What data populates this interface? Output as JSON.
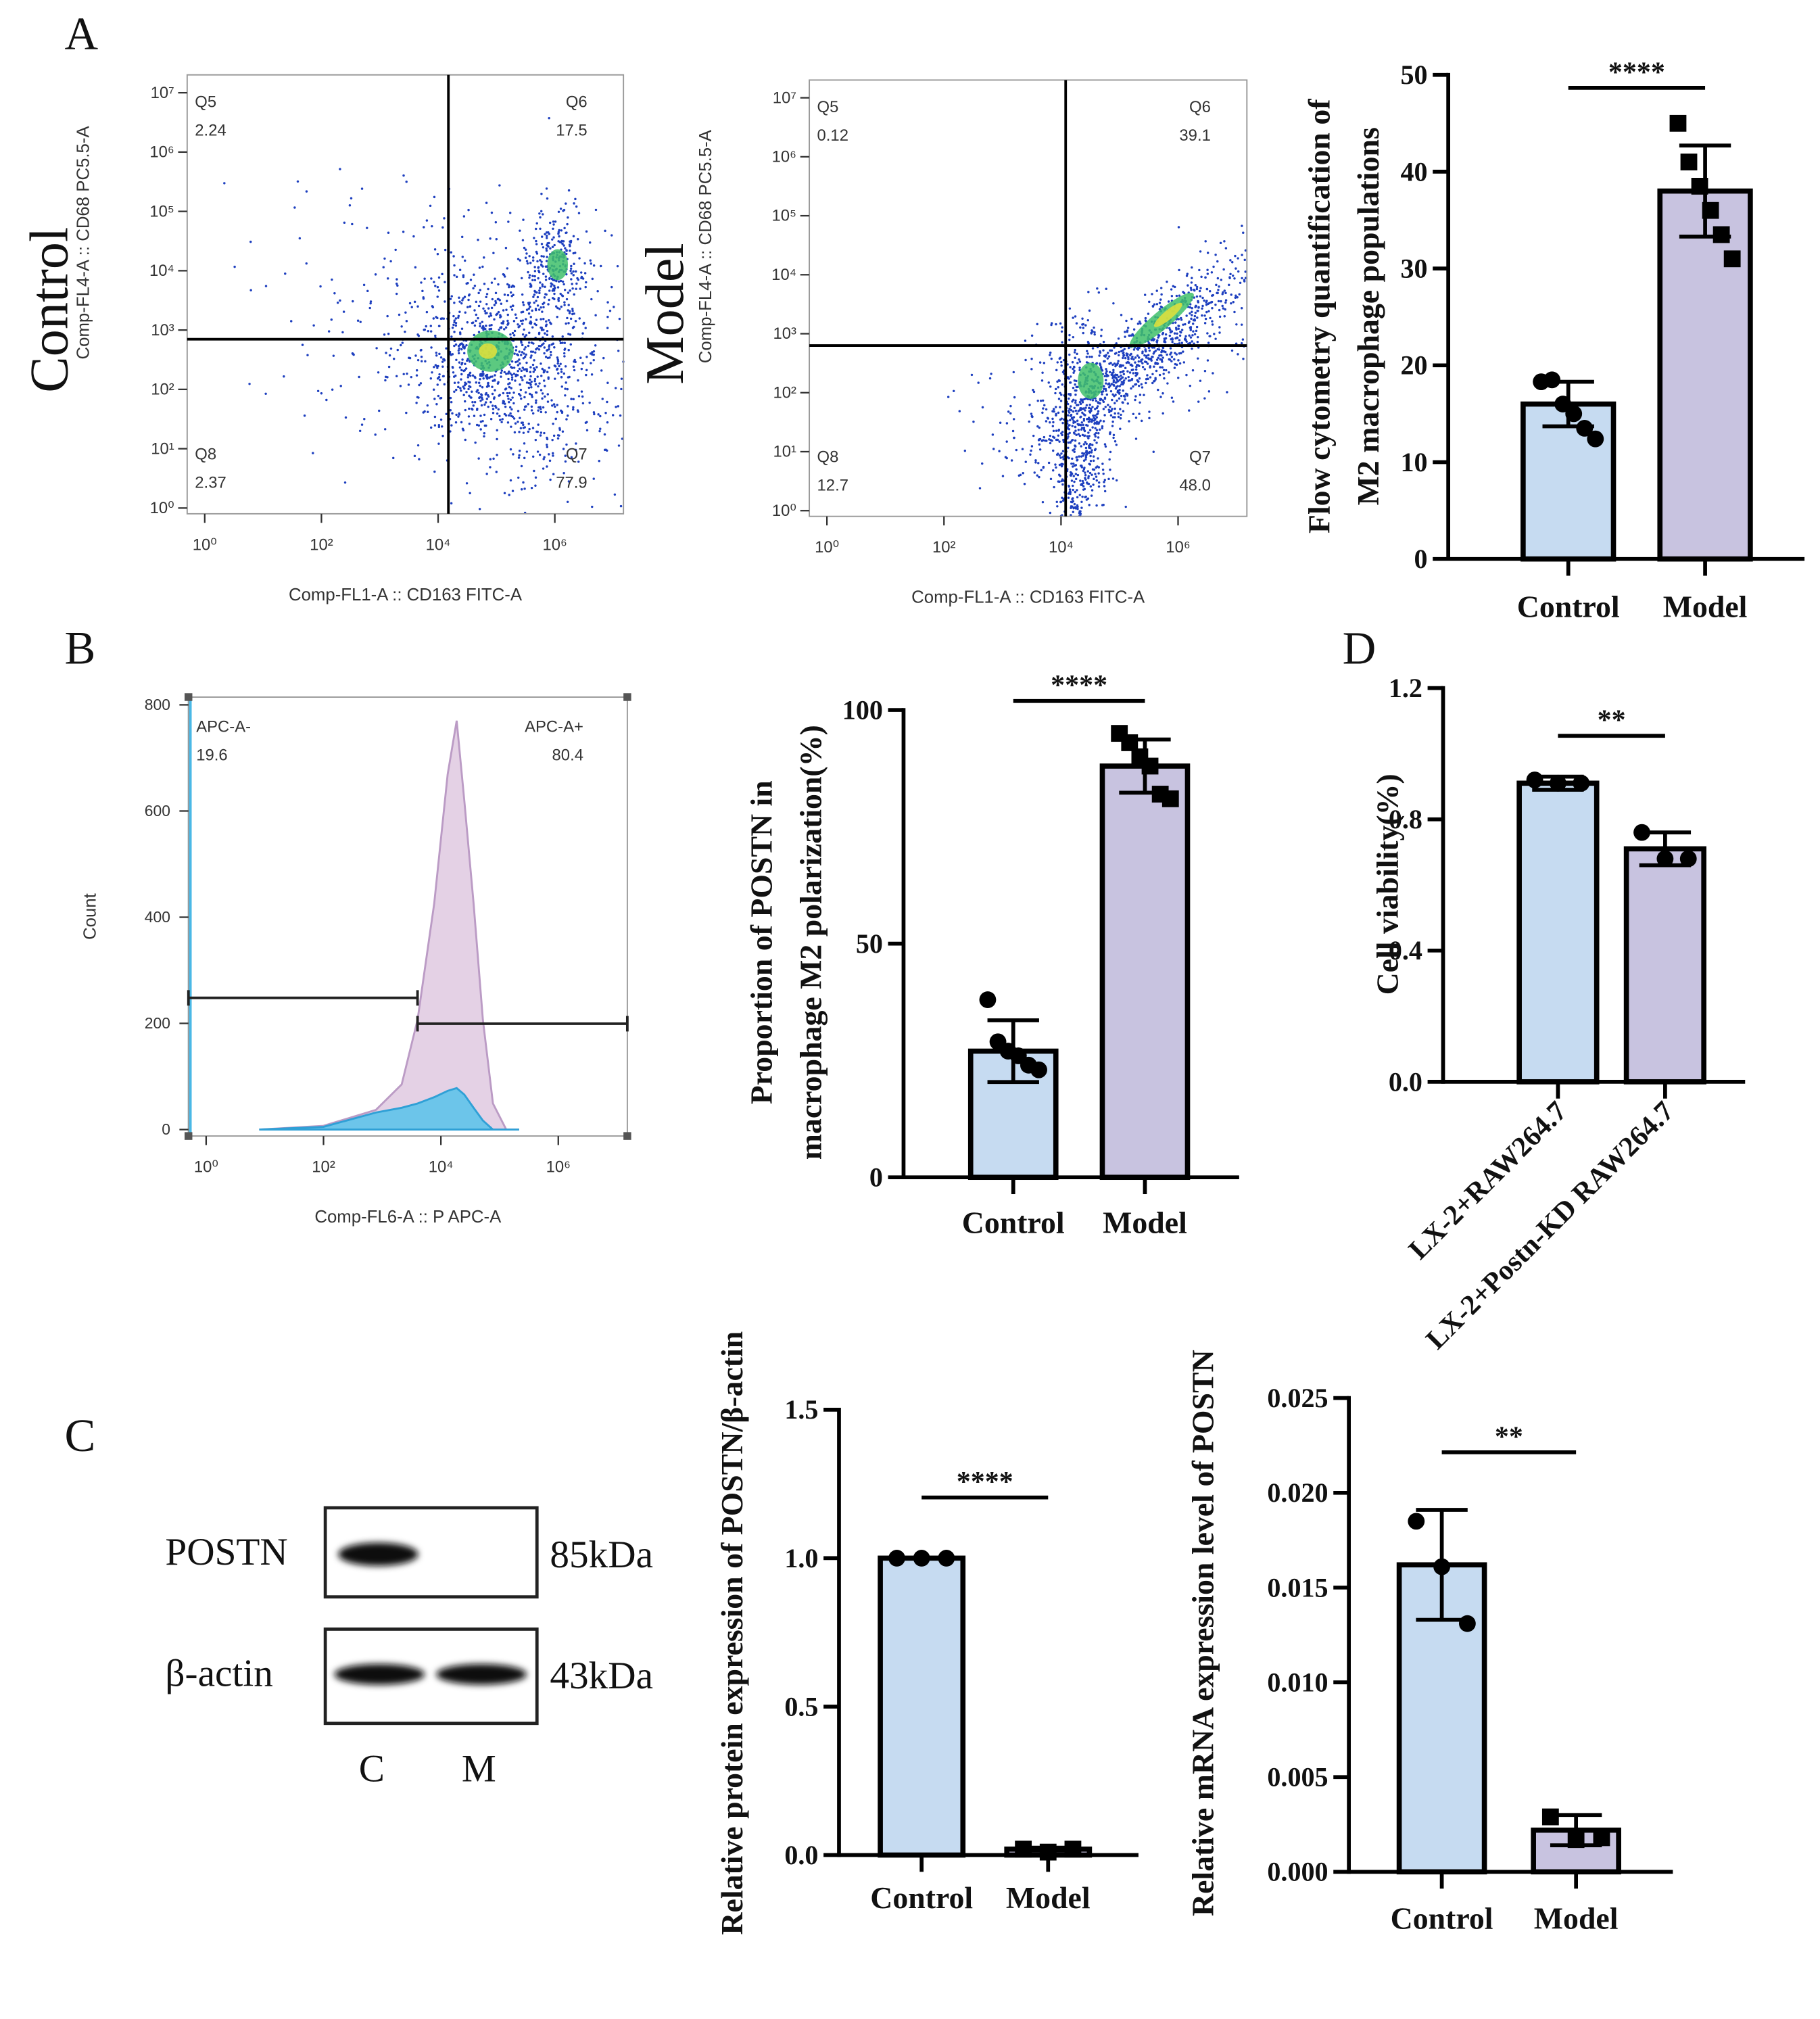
{
  "panel_labels": [
    "A",
    "B",
    "C",
    "D"
  ],
  "chart_data": [
    {
      "type": "density",
      "group": "Control",
      "xlabel": "Comp-FL1-A :: CD163 FITC-A",
      "ylabel": "Comp-FL4-A :: CD68 PC5.5-A",
      "log_scale": true,
      "xlim": [
        0.5,
        15000000
      ],
      "ylim": [
        0.8,
        20000000
      ],
      "xticks": [
        {
          "value": 1,
          "label": "10⁰"
        },
        {
          "value": 100,
          "label": "10²"
        },
        {
          "value": 10000,
          "label": "10⁴"
        },
        {
          "value": 1000000,
          "label": "10⁶"
        }
      ],
      "yticks": [
        {
          "value": 1,
          "label": "10⁰"
        },
        {
          "value": 10,
          "label": "10¹"
        },
        {
          "value": 100,
          "label": "10²"
        },
        {
          "value": 1000,
          "label": "10³"
        },
        {
          "value": 10000,
          "label": "10⁴"
        },
        {
          "value": 100000,
          "label": "10⁵"
        },
        {
          "value": 1000000,
          "label": "10⁶"
        },
        {
          "value": 10000000,
          "label": "10⁷"
        }
      ],
      "gates": {
        "x": 15000,
        "y": 700
      },
      "quadrants": [
        {
          "name": "Q5",
          "value": 2.24
        },
        {
          "name": "Q6",
          "value": 17.5
        },
        {
          "name": "Q8",
          "value": 2.37
        },
        {
          "name": "Q7",
          "value": 77.9
        }
      ]
    },
    {
      "type": "density",
      "group": "Model",
      "xlabel": "Comp-FL1-A :: CD163 FITC-A",
      "ylabel": "Comp-FL4-A :: CD68 PC5.5-A",
      "log_scale": true,
      "xlim": [
        0.5,
        15000000
      ],
      "ylim": [
        0.8,
        20000000
      ],
      "xticks": [
        {
          "value": 1,
          "label": "10⁰"
        },
        {
          "value": 100,
          "label": "10²"
        },
        {
          "value": 10000,
          "label": "10⁴"
        },
        {
          "value": 1000000,
          "label": "10⁶"
        }
      ],
      "yticks": [
        {
          "value": 1,
          "label": "10⁰"
        },
        {
          "value": 10,
          "label": "10¹"
        },
        {
          "value": 100,
          "label": "10²"
        },
        {
          "value": 1000,
          "label": "10³"
        },
        {
          "value": 10000,
          "label": "10⁴"
        },
        {
          "value": 100000,
          "label": "10⁵"
        },
        {
          "value": 1000000,
          "label": "10⁶"
        },
        {
          "value": 10000000,
          "label": "10⁷"
        }
      ],
      "gates": {
        "x": 12000,
        "y": 630
      },
      "quadrants": [
        {
          "name": "Q5",
          "value": 0.12
        },
        {
          "name": "Q6",
          "value": 39.1
        },
        {
          "name": "Q8",
          "value": 12.7
        },
        {
          "name": "Q7",
          "value": 48,
          "label": "48.0"
        }
      ]
    },
    {
      "type": "bar",
      "ylabel": [
        "Flow cytometry quantification of",
        "M2 macrophage populations"
      ],
      "categories": [
        "Control",
        "Model"
      ],
      "values": [
        16,
        38
      ],
      "errors": [
        2.3,
        4.7
      ],
      "colors": [
        "#c6dbf1",
        "#c8c3e0"
      ],
      "markers": [
        "circle",
        "square"
      ],
      "points": [
        [
          18.3,
          18.5,
          16,
          15,
          13.5,
          12.4
        ],
        [
          45,
          41,
          38.5,
          36,
          33.5,
          31
        ]
      ],
      "ylim": [
        0,
        50
      ],
      "yticks": [
        0,
        10,
        20,
        30,
        40,
        50
      ],
      "significance": "****"
    },
    {
      "type": "histogram",
      "xlabel": "Comp-FL6-A :: P APC-A",
      "ylabel": "Count",
      "log_scale": true,
      "xlim": [
        0.5,
        15000000
      ],
      "ylim": [
        0,
        800
      ],
      "xticks": [
        {
          "value": 1,
          "label": "10⁰"
        },
        {
          "value": 100,
          "label": "10²"
        },
        {
          "value": 10000,
          "label": "10⁴"
        },
        {
          "value": 1000000,
          "label": "10⁶"
        }
      ],
      "yticks": [
        0,
        200,
        400,
        600,
        800
      ],
      "x": [
        8,
        100,
        780,
        2150,
        4000,
        7700,
        13000,
        18600,
        25000,
        36000,
        52000,
        77000,
        130000,
        215000
      ],
      "series": [
        {
          "color": "#e3cfe4",
          "values": [
            0,
            7,
            37,
            85,
            207,
            426,
            669,
            770,
            620,
            426,
            207,
            49,
            0,
            0
          ]
        },
        {
          "color": "#6cc5ea",
          "values": [
            0,
            5,
            32,
            41,
            49,
            61,
            73,
            78,
            66,
            41,
            17,
            0,
            0,
            0
          ]
        }
      ],
      "threshold": 4000,
      "gates": [
        {
          "name": "APC-A-",
          "value": 19.6
        },
        {
          "name": "APC-A+",
          "value": 80.4
        }
      ]
    },
    {
      "type": "bar",
      "ylabel": [
        "Proportion of POSTN in",
        "macrophage M2 polarization(%)"
      ],
      "categories": [
        "Control",
        "Model"
      ],
      "values": [
        27,
        88
      ],
      "errors": [
        6.6,
        5.7
      ],
      "colors": [
        "#c6dbf1",
        "#c8c3e0"
      ],
      "markers": [
        "circle",
        "square"
      ],
      "points": [
        [
          38,
          29,
          27,
          26,
          24,
          23
        ],
        [
          95,
          93,
          90,
          88,
          82,
          81
        ]
      ],
      "ylim": [
        0,
        100
      ],
      "yticks": [
        0,
        50,
        100
      ],
      "significance": "****"
    },
    {
      "type": "bar",
      "ylabel": [
        "Cell viability(%)"
      ],
      "categories": [
        "LX-2+RAW264.7",
        "LX-2+Postn-KD RAW264.7"
      ],
      "values": [
        0.91,
        0.71
      ],
      "errors": [
        0.02,
        0.05
      ],
      "colors": [
        "#c6dbf1",
        "#c8c3e0"
      ],
      "markers": [
        "circle",
        "circle"
      ],
      "points": [
        [
          0.92,
          0.91,
          0.91
        ],
        [
          0.76,
          0.68,
          0.68
        ]
      ],
      "ylim": [
        0,
        1.2
      ],
      "yticks": [
        {
          "value": 0,
          "label": "0.0"
        },
        0.4,
        0.8,
        1.2
      ],
      "significance": "**"
    },
    {
      "type": "bar",
      "ylabel": [
        "Relative protein expression of POSTN/β-actin"
      ],
      "categories": [
        "Control",
        "Model"
      ],
      "values": [
        1,
        0.02
      ],
      "errors": [
        0,
        0.005
      ],
      "colors": [
        "#c6dbf1",
        "#c8c3e0"
      ],
      "markers": [
        "circle",
        "square"
      ],
      "points": [
        [
          1,
          1,
          1
        ],
        [
          0.02,
          0.01,
          0.02
        ]
      ],
      "ylim": [
        0,
        1.5
      ],
      "yticks": [
        {
          "value": 0,
          "label": "0.0"
        },
        0.5,
        {
          "value": 1,
          "label": "1.0"
        },
        1.5
      ],
      "significance": "****"
    },
    {
      "type": "bar",
      "ylabel": [
        "Relative mRNA expression level of POSTN"
      ],
      "categories": [
        "Control",
        "Model"
      ],
      "values": [
        0.0162,
        0.0022
      ],
      "errors": [
        0.0029,
        0.0008
      ],
      "colors": [
        "#c6dbf1",
        "#c8c3e0"
      ],
      "markers": [
        "circle",
        "square"
      ],
      "points": [
        [
          0.0185,
          0.0161,
          0.0131
        ],
        [
          0.0029,
          0.0017,
          0.0018
        ]
      ],
      "ylim": [
        0,
        0.025
      ],
      "yticks": [
        {
          "value": 0,
          "label": "0.000"
        },
        0.005,
        {
          "value": 0.01,
          "label": "0.010"
        },
        0.015,
        {
          "value": 0.02,
          "label": "0.020"
        },
        0.025
      ],
      "significance": "**"
    }
  ],
  "western_blot": {
    "bands": [
      {
        "name": "POSTN",
        "size": "85kDa"
      },
      {
        "name": "β-actin",
        "size": "43kDa"
      }
    ],
    "lanes": [
      "C",
      "M"
    ]
  }
}
